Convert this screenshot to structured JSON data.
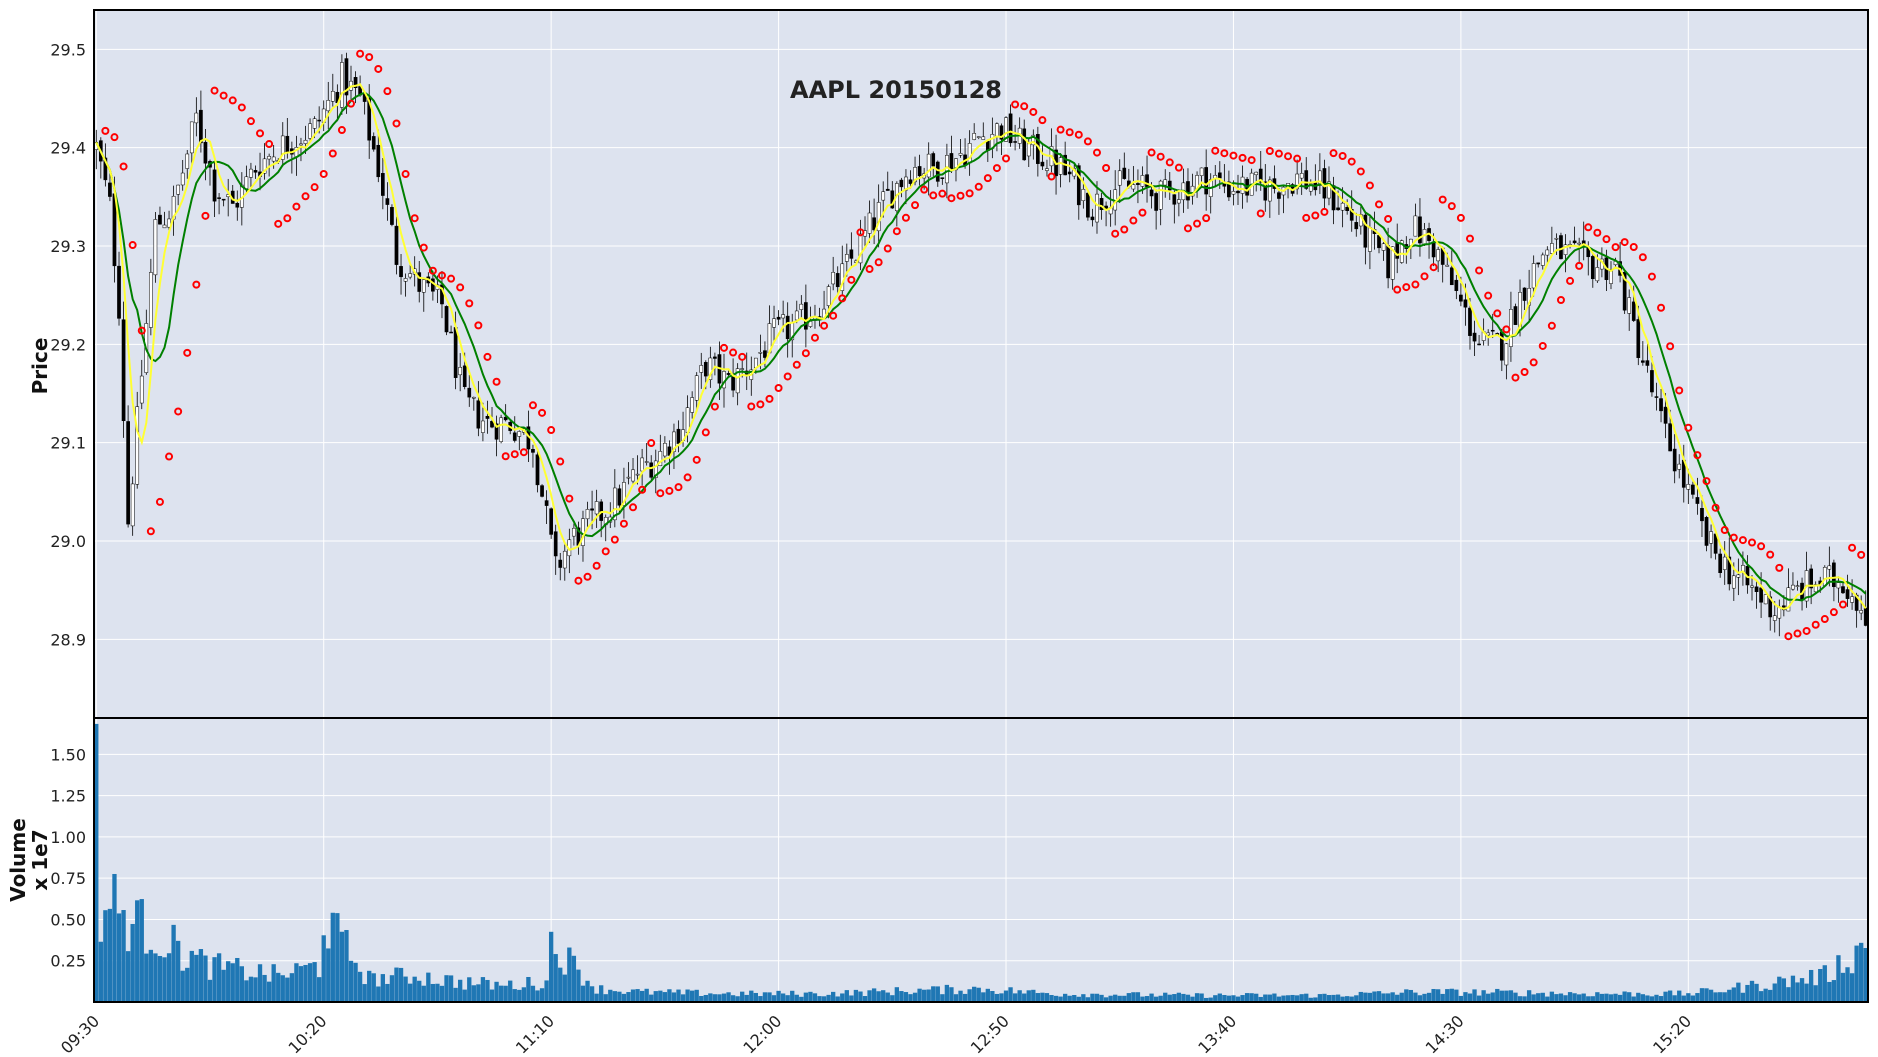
{
  "colors": {
    "panel_bg": "#dde3ef",
    "grid": "#ffffff",
    "frame": "#000000",
    "candle_wick": "#000000",
    "candle_up_fill": "#ffffff",
    "candle_down_fill": "#000000",
    "ma_fast": "#ffff33",
    "ma_slow": "#008000",
    "psar": "#ff0000",
    "volume_bar": "#1f77b4"
  },
  "chart_data": {
    "type": "candlestick",
    "title": "AAPL 20150128",
    "xlabel": "",
    "ylabel_price": "Price",
    "ylabel_volume": "Volume",
    "volume_scale_label": "x 1e7",
    "price_ylim": [
      28.82,
      29.54
    ],
    "volume_ylim": [
      0.0,
      1.72
    ],
    "price_ticks": [
      "28.9",
      "29.0",
      "29.1",
      "29.2",
      "29.3",
      "29.4",
      "29.5"
    ],
    "volume_ticks": [
      "0.25",
      "0.50",
      "0.75",
      "1.00",
      "1.25",
      "1.50"
    ],
    "time_ticks": [
      "09:30",
      "10:20",
      "11:10",
      "12:00",
      "12:50",
      "13:40",
      "14:30",
      "15:20"
    ],
    "grid": true,
    "bar_interval_minutes": 1,
    "series": {
      "price_keypoints": {
        "times": [
          "09:30",
          "09:33",
          "09:35",
          "09:37",
          "09:39",
          "09:43",
          "09:47",
          "09:52",
          "09:56",
          "10:00",
          "10:05",
          "10:10",
          "10:14",
          "10:18",
          "10:24",
          "10:28",
          "10:32",
          "10:36",
          "10:41",
          "10:46",
          "10:51",
          "10:56",
          "11:01",
          "11:06",
          "11:11",
          "11:14",
          "11:19",
          "11:24",
          "11:29",
          "11:34",
          "11:39",
          "11:44",
          "11:49",
          "11:54",
          "11:59",
          "12:04",
          "12:09",
          "12:14",
          "12:19",
          "12:24",
          "12:29",
          "12:34",
          "12:39",
          "12:44",
          "12:49",
          "12:54",
          "12:59",
          "13:04",
          "13:09",
          "13:14",
          "13:19",
          "13:24",
          "13:29",
          "13:34",
          "13:39",
          "13:44",
          "13:49",
          "13:54",
          "13:59",
          "14:04",
          "14:09",
          "14:14",
          "14:19",
          "14:24",
          "14:29",
          "14:34",
          "14:39",
          "14:44",
          "14:49",
          "14:54",
          "14:59",
          "15:04",
          "15:09",
          "15:14",
          "15:19",
          "15:24",
          "15:29",
          "15:34",
          "15:39",
          "15:44",
          "15:49",
          "15:54",
          "15:59"
        ],
        "closes": [
          29.4,
          29.34,
          29.24,
          29.02,
          29.12,
          29.32,
          29.34,
          29.43,
          29.36,
          29.34,
          29.38,
          29.4,
          29.41,
          29.42,
          29.47,
          29.45,
          29.38,
          29.29,
          29.26,
          29.24,
          29.14,
          29.12,
          29.12,
          29.1,
          28.97,
          29.0,
          29.02,
          29.04,
          29.07,
          29.09,
          29.12,
          29.18,
          29.16,
          29.18,
          29.21,
          29.22,
          29.24,
          29.27,
          29.31,
          29.35,
          29.38,
          29.38,
          29.39,
          29.41,
          29.42,
          29.4,
          29.39,
          29.37,
          29.34,
          29.36,
          29.36,
          29.35,
          29.36,
          29.37,
          29.36,
          29.36,
          29.36,
          29.37,
          29.36,
          29.34,
          29.31,
          29.28,
          29.32,
          29.3,
          29.25,
          29.2,
          29.2,
          29.26,
          29.3,
          29.29,
          29.28,
          29.28,
          29.2,
          29.12,
          29.06,
          29.0,
          28.97,
          28.95,
          28.93,
          28.95,
          28.96,
          28.96,
          28.93
        ]
      },
      "volume_keypoints": {
        "times": [
          "09:30",
          "09:31",
          "09:33",
          "09:36",
          "09:40",
          "09:45",
          "09:50",
          "09:55",
          "10:00",
          "10:10",
          "10:19",
          "10:20",
          "10:30",
          "10:40",
          "10:50",
          "11:00",
          "11:09",
          "11:10",
          "11:20",
          "11:30",
          "11:50",
          "12:10",
          "12:30",
          "12:45",
          "13:00",
          "13:30",
          "14:00",
          "14:20",
          "14:30",
          "15:00",
          "15:20",
          "15:35",
          "15:50",
          "15:59"
        ],
        "volumes": [
          1.58,
          0.45,
          0.62,
          0.52,
          0.46,
          0.38,
          0.28,
          0.22,
          0.2,
          0.16,
          0.22,
          0.5,
          0.14,
          0.16,
          0.12,
          0.1,
          0.12,
          0.36,
          0.08,
          0.06,
          0.05,
          0.05,
          0.07,
          0.08,
          0.05,
          0.04,
          0.04,
          0.06,
          0.06,
          0.05,
          0.05,
          0.1,
          0.16,
          0.34
        ]
      }
    }
  }
}
